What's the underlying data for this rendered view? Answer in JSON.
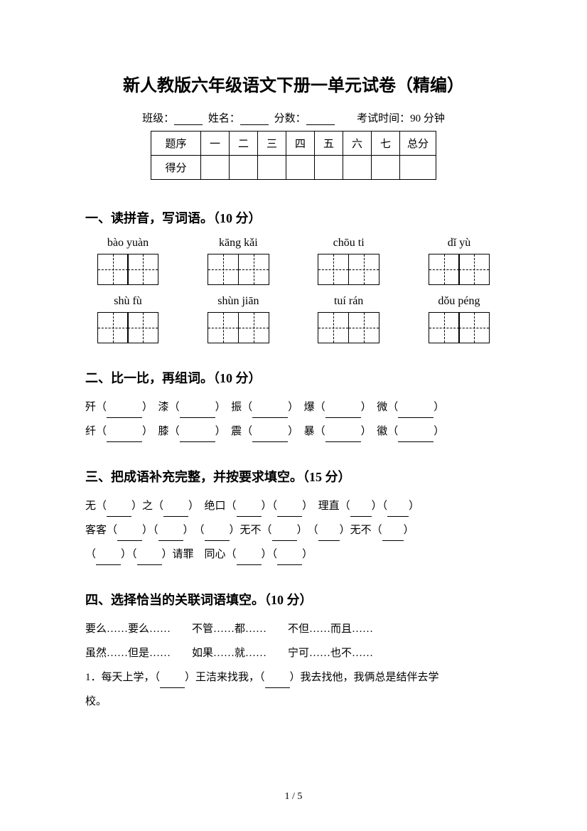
{
  "title": "新人教版六年级语文下册一单元试卷（精编）",
  "info": {
    "class_label": "班级：",
    "name_label": "姓名：",
    "score_label": "分数：",
    "time_label": "考试时间：90 分钟"
  },
  "score_table": {
    "header_first": "题序",
    "cols": [
      "一",
      "二",
      "三",
      "四",
      "五",
      "六",
      "七",
      "总分"
    ],
    "row2_first": "得分"
  },
  "section1": {
    "heading": "一、读拼音，写词语。（10 分）",
    "row1": [
      "bào yuàn",
      "kāng kǎi",
      "chōu ti",
      "dǐ yù"
    ],
    "row2": [
      "shù fù",
      "shùn jiān",
      "tuí rán",
      "dǒu péng"
    ]
  },
  "section2": {
    "heading": "二、比一比，再组词。（10 分）",
    "pairs_row1": [
      "歼",
      "漆",
      "振",
      "爆",
      "微"
    ],
    "pairs_row2": [
      "纤",
      "膝",
      "震",
      "暴",
      "徽"
    ]
  },
  "section3": {
    "heading": "三、把成语补充完整，并按要求填空。（15 分）",
    "line1_a": "无（",
    "line1_b": "）之（",
    "line1_c": "）　绝口（",
    "line1_d": "）（",
    "line1_e": "）　理直（",
    "line1_f": "）（",
    "line1_g": "）",
    "line2_a": "客客（",
    "line2_b": "）（",
    "line2_c": "）　（",
    "line2_d": "）无不（",
    "line2_e": "）　（",
    "line2_f": "）无不（",
    "line2_g": "）",
    "line3_a": "（",
    "line3_b": "）（",
    "line3_c": "）请罪　同心（",
    "line3_d": "）（",
    "line3_e": "）"
  },
  "section4": {
    "heading": "四、选择恰当的关联词语填空。（10 分）",
    "options_line1": "要么……要么……　　不管……都……　　不但……而且……",
    "options_line2": "虽然……但是……　　如果……就……　　宁可……也不……",
    "q1_a": "1．每天上学，（",
    "q1_b": "）王洁来找我，（",
    "q1_c": "）我去找他，我俩总是结伴去学",
    "q1_d": "校。"
  },
  "page_num": "1 / 5"
}
